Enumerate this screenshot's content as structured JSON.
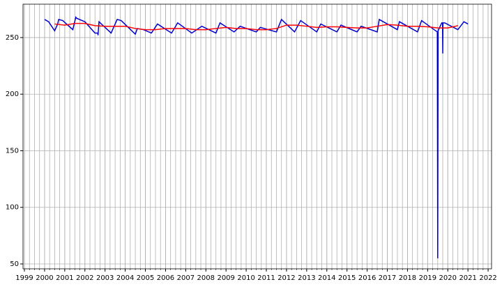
{
  "chart_data": {
    "type": "line",
    "xlim": [
      1998.93,
      2022.17
    ],
    "ylim": [
      45.7,
      279.5
    ],
    "xticks": [
      1999,
      2000,
      2001,
      2002,
      2003,
      2004,
      2005,
      2006,
      2007,
      2008,
      2009,
      2010,
      2011,
      2012,
      2013,
      2014,
      2015,
      2016,
      2017,
      2018,
      2019,
      2020,
      2021,
      2022
    ],
    "yticks": [
      50,
      100,
      150,
      200,
      250
    ],
    "grid": true,
    "xminor_step": 0.25,
    "series": [
      {
        "color": "#0000cc",
        "x": [
          2000.0,
          2000.2,
          2000.5,
          2000.65,
          2000.7,
          2000.9,
          2001.4,
          2001.55,
          2001.6,
          2002.0,
          2002.5,
          2002.64,
          2002.65,
          2002.7,
          2003.3,
          2003.6,
          2003.8,
          2004.5,
          2004.6,
          2004.9,
          2005.3,
          2005.6,
          2006.3,
          2006.6,
          2007.3,
          2007.8,
          2008.5,
          2008.7,
          2009.4,
          2009.7,
          2010.5,
          2010.7,
          2011.5,
          2011.75,
          2012.4,
          2012.7,
          2013.5,
          2013.7,
          2014.5,
          2014.7,
          2015.5,
          2015.7,
          2016.5,
          2016.6,
          2017.5,
          2017.6,
          2018.5,
          2018.7,
          2019.4,
          2019.48,
          2019.5,
          2019.52,
          2019.7,
          2019.74,
          2019.75,
          2019.76,
          2019.85,
          2020.5,
          2020.8,
          2021.0
        ],
        "values": [
          266,
          264,
          256,
          262,
          266,
          265,
          257,
          268,
          267,
          264,
          254,
          254,
          252,
          264,
          254,
          266,
          265,
          253,
          258,
          257,
          254,
          262,
          254,
          263,
          254,
          260,
          254,
          263,
          255,
          260,
          255,
          259,
          255,
          266,
          255,
          265,
          255,
          262,
          255,
          261,
          255,
          260,
          255,
          266,
          257,
          264,
          255,
          265,
          256,
          255,
          55,
          256,
          263,
          263,
          236,
          263,
          263,
          257,
          264,
          262
        ]
      },
      {
        "color": "#ff0000",
        "x": [
          2000.5,
          2001.0,
          2001.5,
          2002.0,
          2002.5,
          2003.0,
          2003.5,
          2004.0,
          2004.5,
          2005.0,
          2005.5,
          2006.0,
          2006.5,
          2007.0,
          2007.5,
          2008.0,
          2008.5,
          2009.0,
          2009.5,
          2010.0,
          2010.5,
          2011.0,
          2011.5,
          2012.0,
          2012.5,
          2013.0,
          2013.5,
          2014.0,
          2014.5,
          2015.0,
          2015.5,
          2016.0,
          2016.5,
          2017.0,
          2017.5,
          2018.0,
          2018.5,
          2019.0,
          2019.5,
          2020.0,
          2020.5
        ],
        "values": [
          262,
          261,
          262.5,
          262.5,
          260.5,
          260,
          260,
          260,
          258,
          257,
          257,
          258,
          258,
          258,
          257,
          257,
          258,
          259,
          258,
          258,
          257,
          257,
          258,
          261,
          261,
          260,
          259,
          259.5,
          259.5,
          259,
          258.5,
          258.5,
          260,
          261.5,
          261,
          260,
          260,
          259.5,
          258.5,
          258.5,
          260.5
        ]
      }
    ]
  }
}
